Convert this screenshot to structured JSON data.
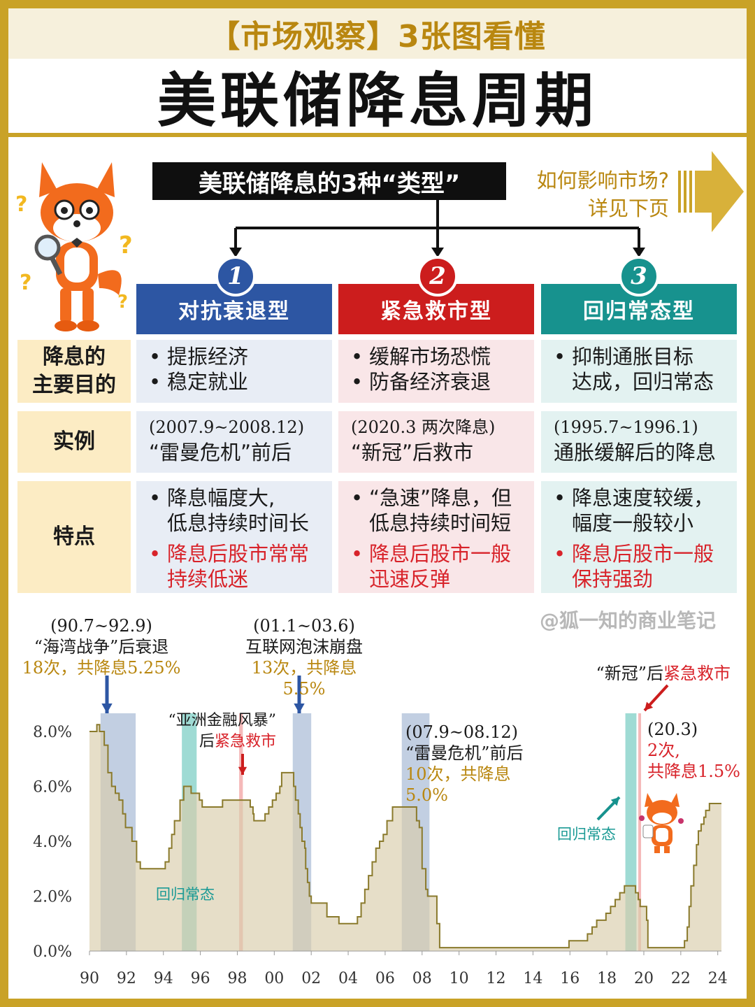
{
  "header": {
    "subtitle": "【市场观察】3张图看懂",
    "title": "美联储降息周期"
  },
  "types_banner": "美联储降息的3种“类型”",
  "next_page": {
    "line1": "如何影响市场?",
    "line2": "详见下页"
  },
  "colors": {
    "blue": "#2d56a3",
    "red": "#cc1d1d",
    "teal": "#17928e",
    "gold": "#b98710",
    "row_bg": "#fcecc4"
  },
  "columns": [
    {
      "num": "1",
      "title": "对抗衰退型",
      "purpose": [
        "提振经济",
        "稳定就业"
      ],
      "example_line1": "(2007.9~2008.12)",
      "example_line2": "“雷曼危机”前后",
      "feature1": "降息幅度大,\n低息持续时间长",
      "feature2": "降息后股市常常\n持续低迷"
    },
    {
      "num": "2",
      "title": "紧急救市型",
      "purpose": [
        "缓解市场恐慌",
        "防备经济衰退"
      ],
      "example_line1": "(2020.3 两次降息)",
      "example_line2": "“新冠”后救市",
      "feature1": "“急速”降息，但\n低息持续时间短",
      "feature2": "降息后股市一般\n迅速反弹"
    },
    {
      "num": "3",
      "title": "回归常态型",
      "purpose": [
        "抑制通胀目标\n达成，回归常态"
      ],
      "example_line1": "(1995.7~1996.1)",
      "example_line2": "通胀缓解后的降息",
      "feature1": "降息速度较缓，\n幅度一般较小",
      "feature2": "降息后股市一般\n保持强劲"
    }
  ],
  "row_labels": {
    "purpose": "降息的\n主要目的",
    "example": "实例",
    "features": "特点"
  },
  "watermark": "@狐一知的商业笔记",
  "annotations": {
    "gulf": {
      "date": "(90.7~92.9)",
      "name": "“海湾战争”后衰退",
      "cuts": "18次，共降息5.25%"
    },
    "dotcom": {
      "date": "(01.1~03.6)",
      "name": "互联网泡沫崩盘",
      "cuts": "13次，共降息5.5%"
    },
    "asia_1": "“亚洲金融风暴”",
    "asia_2a": "后",
    "asia_2b": "紧急救市",
    "lehman": {
      "date": "(07.9~08.12)",
      "name": "“雷曼危机”前后",
      "cuts": "10次，共降息5.0%"
    },
    "covid_title_a": "“新冠”后",
    "covid_title_b": "紧急救市",
    "covid": {
      "date": "(20.3)",
      "cuts1": "2次,",
      "cuts2": "共降息1.5%"
    },
    "normal_1": "回归常态",
    "normal_2": "回归常态"
  },
  "chart_data": {
    "type": "area",
    "xlabel": "",
    "ylabel": "",
    "x_ticks": [
      "90",
      "92",
      "94",
      "96",
      "98",
      "00",
      "02",
      "04",
      "06",
      "08",
      "10",
      "12",
      "14",
      "16",
      "18",
      "20",
      "22",
      "24"
    ],
    "y_ticks": [
      "0.0%",
      "2.0%",
      "4.0%",
      "6.0%",
      "8.0%"
    ],
    "ylim": [
      0,
      8.5
    ],
    "xlim": [
      1990,
      2024.2
    ],
    "series": [
      {
        "points": [
          [
            1990.0,
            8.0
          ],
          [
            1990.4,
            8.25
          ],
          [
            1990.55,
            8.0
          ],
          [
            1990.8,
            7.5
          ],
          [
            1991.0,
            6.5
          ],
          [
            1991.2,
            6.0
          ],
          [
            1991.4,
            5.75
          ],
          [
            1991.6,
            5.5
          ],
          [
            1991.8,
            5.0
          ],
          [
            1991.95,
            4.5
          ],
          [
            1992.3,
            4.0
          ],
          [
            1992.55,
            3.25
          ],
          [
            1992.75,
            3.0
          ],
          [
            1994.1,
            3.25
          ],
          [
            1994.3,
            3.75
          ],
          [
            1994.45,
            4.25
          ],
          [
            1994.6,
            4.75
          ],
          [
            1994.9,
            5.5
          ],
          [
            1995.1,
            6.0
          ],
          [
            1995.5,
            5.75
          ],
          [
            1995.95,
            5.5
          ],
          [
            1996.1,
            5.25
          ],
          [
            1997.2,
            5.5
          ],
          [
            1998.7,
            5.25
          ],
          [
            1998.85,
            5.0
          ],
          [
            1998.9,
            4.75
          ],
          [
            1999.5,
            5.0
          ],
          [
            1999.7,
            5.25
          ],
          [
            1999.9,
            5.5
          ],
          [
            2000.1,
            5.75
          ],
          [
            2000.3,
            6.0
          ],
          [
            2000.4,
            6.5
          ],
          [
            2000.95,
            6.5
          ],
          [
            2001.05,
            6.0
          ],
          [
            2001.15,
            5.5
          ],
          [
            2001.3,
            5.0
          ],
          [
            2001.4,
            4.5
          ],
          [
            2001.5,
            4.0
          ],
          [
            2001.65,
            3.75
          ],
          [
            2001.7,
            3.0
          ],
          [
            2001.8,
            2.5
          ],
          [
            2001.9,
            2.0
          ],
          [
            2002.0,
            1.75
          ],
          [
            2002.85,
            1.25
          ],
          [
            2003.5,
            1.0
          ],
          [
            2004.5,
            1.25
          ],
          [
            2004.7,
            1.75
          ],
          [
            2004.9,
            2.25
          ],
          [
            2005.1,
            2.75
          ],
          [
            2005.3,
            3.25
          ],
          [
            2005.5,
            3.75
          ],
          [
            2005.7,
            4.0
          ],
          [
            2005.9,
            4.25
          ],
          [
            2006.1,
            4.75
          ],
          [
            2006.4,
            5.25
          ],
          [
            2007.7,
            4.75
          ],
          [
            2007.85,
            4.5
          ],
          [
            2008.0,
            3.0
          ],
          [
            2008.2,
            2.25
          ],
          [
            2008.3,
            2.0
          ],
          [
            2008.8,
            1.0
          ],
          [
            2008.95,
            0.125
          ],
          [
            2015.95,
            0.375
          ],
          [
            2016.95,
            0.625
          ],
          [
            2017.2,
            0.875
          ],
          [
            2017.45,
            1.125
          ],
          [
            2017.95,
            1.375
          ],
          [
            2018.2,
            1.625
          ],
          [
            2018.45,
            1.875
          ],
          [
            2018.7,
            2.125
          ],
          [
            2018.95,
            2.375
          ],
          [
            2019.55,
            2.125
          ],
          [
            2019.7,
            1.875
          ],
          [
            2019.8,
            1.625
          ],
          [
            2020.15,
            1.125
          ],
          [
            2020.22,
            0.125
          ],
          [
            2022.2,
            0.375
          ],
          [
            2022.35,
            0.875
          ],
          [
            2022.45,
            1.625
          ],
          [
            2022.55,
            2.375
          ],
          [
            2022.7,
            3.125
          ],
          [
            2022.85,
            3.875
          ],
          [
            2022.95,
            4.375
          ],
          [
            2023.1,
            4.625
          ],
          [
            2023.25,
            4.875
          ],
          [
            2023.35,
            5.125
          ],
          [
            2023.55,
            5.375
          ],
          [
            2024.2,
            5.375
          ]
        ]
      }
    ],
    "bands": [
      {
        "x0": 1990.6,
        "x1": 1992.5,
        "kind": "recession"
      },
      {
        "x0": 2001.0,
        "x1": 2002.0,
        "kind": "recession"
      },
      {
        "x0": 2006.9,
        "x1": 2008.4,
        "kind": "recession"
      },
      {
        "x0": 1995.0,
        "x1": 1995.8,
        "kind": "normal"
      },
      {
        "x0": 2019.0,
        "x1": 2019.6,
        "kind": "normal"
      },
      {
        "x0": 1998.1,
        "x1": 1998.3,
        "kind": "emergency"
      },
      {
        "x0": 2019.7,
        "x1": 2019.85,
        "kind": "emergency"
      }
    ]
  }
}
